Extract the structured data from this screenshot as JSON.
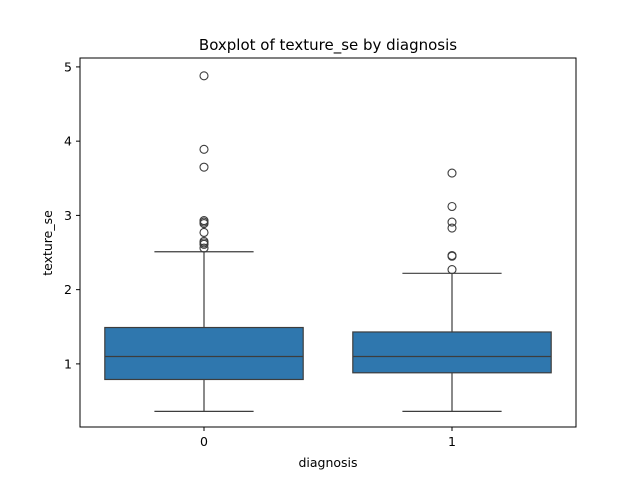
{
  "chart_data": {
    "type": "boxplot",
    "title": "Boxplot of texture_se by diagnosis",
    "xlabel": "diagnosis",
    "ylabel": "texture_se",
    "categories": [
      "0",
      "1"
    ],
    "ylim": [
      0.15,
      5.12
    ],
    "yticks": [
      1,
      2,
      3,
      4,
      5
    ],
    "grid": false,
    "box_color": "#2f77ae",
    "line_color": "#3d3d3d",
    "boxes": [
      {
        "category": "0",
        "whisker_low": 0.36,
        "q1": 0.79,
        "median": 1.1,
        "q3": 1.49,
        "whisker_high": 2.51,
        "outliers": [
          2.56,
          2.61,
          2.63,
          2.65,
          2.77,
          2.89,
          2.91,
          2.93,
          3.65,
          3.89,
          4.88
        ]
      },
      {
        "category": "1",
        "whisker_low": 0.36,
        "q1": 0.88,
        "median": 1.1,
        "q3": 1.43,
        "whisker_high": 2.22,
        "outliers": [
          2.27,
          2.45,
          2.46,
          2.83,
          2.91,
          3.12,
          3.57
        ]
      }
    ]
  }
}
